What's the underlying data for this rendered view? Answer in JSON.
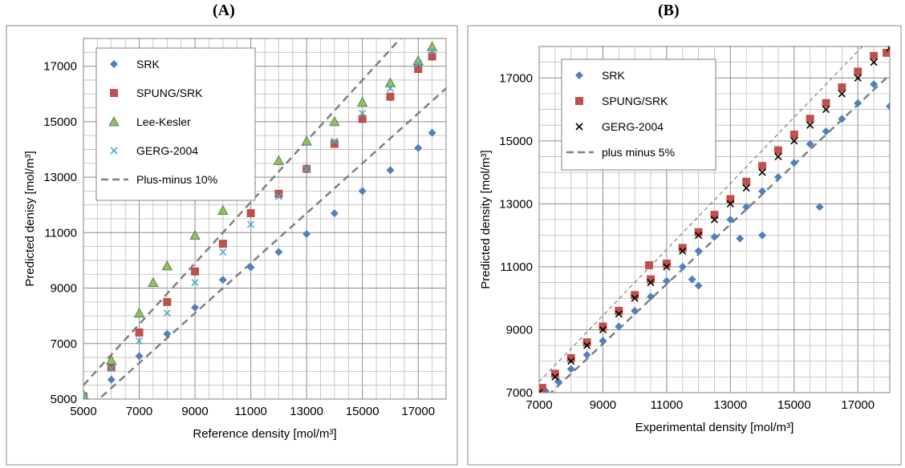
{
  "panels": {
    "a_label": "(A)",
    "b_label": "(B)"
  },
  "chart_data": [
    {
      "type": "scatter",
      "title": "(A)",
      "xlabel": "Reference density [mol/m³]",
      "ylabel": "Predicted denisy [mol/m³]",
      "xlim": [
        5000,
        18000
      ],
      "ylim": [
        5000,
        18000
      ],
      "xticks": [
        "5000",
        "7000",
        "9000",
        "11000",
        "13000",
        "15000",
        "17000"
      ],
      "yticks": [
        "5000",
        "7000",
        "9000",
        "11000",
        "13000",
        "15000",
        "17000"
      ],
      "grid": true,
      "legend_position": "top-left",
      "series": [
        {
          "name": "SRK",
          "marker": "diamond",
          "color": "#4F81BD",
          "x": [
            5000,
            6000,
            7000,
            8000,
            9000,
            10000,
            11000,
            12000,
            13000,
            14000,
            15000,
            16000,
            17000,
            17500
          ],
          "y": [
            5050,
            5700,
            6550,
            7350,
            8300,
            9300,
            9750,
            10300,
            10950,
            11700,
            12500,
            13250,
            14050,
            14600
          ]
        },
        {
          "name": "SPUNG/SRK",
          "marker": "square",
          "color": "#C0504D",
          "x": [
            5000,
            6000,
            7000,
            8000,
            9000,
            10000,
            11000,
            12000,
            13000,
            14000,
            15000,
            16000,
            17000,
            17500
          ],
          "y": [
            5100,
            6150,
            7400,
            8500,
            9600,
            10600,
            11700,
            12400,
            13300,
            14200,
            15100,
            15900,
            16900,
            17350
          ]
        },
        {
          "name": "Lee-Kesler",
          "marker": "triangle",
          "color": "#9BBB59",
          "x": [
            5000,
            6000,
            7000,
            7500,
            8000,
            9000,
            10000,
            11000,
            12000,
            13000,
            14000,
            15000,
            16000,
            17000,
            17500
          ],
          "y": [
            5150,
            6400,
            8100,
            9200,
            9800,
            10900,
            11800,
            12900,
            13600,
            14300,
            15000,
            15700,
            16400,
            17200,
            17700
          ]
        },
        {
          "name": "GERG-2004",
          "marker": "x",
          "color": "#4BACC6",
          "x": [
            5000,
            6000,
            7000,
            8000,
            9000,
            10000,
            11000,
            12000,
            13000,
            14000,
            15000,
            16000,
            17000,
            17500
          ],
          "y": [
            5080,
            6100,
            7100,
            8100,
            9200,
            10300,
            11300,
            12300,
            13300,
            14300,
            15300,
            16200,
            17100,
            17550
          ]
        },
        {
          "name": "Plus-minus 10%",
          "marker": "dash",
          "color": "#808080",
          "x": [
            5000,
            18000
          ],
          "y_upper": [
            5500,
            19800
          ],
          "y_lower": [
            4500,
            16200
          ]
        }
      ]
    },
    {
      "type": "scatter",
      "title": "(B)",
      "xlabel": "Experimental density [mol/m³]",
      "ylabel": "Predicted density [mol/m³]",
      "xlim": [
        7000,
        18000
      ],
      "ylim": [
        7000,
        18000
      ],
      "xticks": [
        "7000",
        "9000",
        "11000",
        "13000",
        "15000",
        "17000"
      ],
      "yticks": [
        "7000",
        "9000",
        "11000",
        "13000",
        "15000",
        "17000"
      ],
      "grid": true,
      "legend_position": "top-left",
      "series": [
        {
          "name": "SRK",
          "marker": "diamond",
          "color": "#4F81BD",
          "x": [
            7200,
            7600,
            8000,
            8500,
            9000,
            9500,
            10000,
            10500,
            11000,
            11500,
            12000,
            12500,
            13000,
            13500,
            14000,
            14500,
            15000,
            15500,
            16000,
            16500,
            17000,
            17500,
            18000,
            11800,
            12000,
            13300,
            14000,
            15800
          ],
          "y": [
            7050,
            7350,
            7750,
            8200,
            8650,
            9100,
            9600,
            10050,
            10550,
            11000,
            11500,
            11950,
            12500,
            12900,
            13400,
            13850,
            14300,
            14900,
            15300,
            15700,
            16200,
            16800,
            16100,
            10600,
            10400,
            11900,
            12000,
            12900
          ]
        },
        {
          "name": "SPUNG/SRK",
          "marker": "square",
          "color": "#C0504D",
          "x": [
            7100,
            7500,
            8000,
            8500,
            9000,
            9500,
            10000,
            10500,
            11000,
            11500,
            12000,
            12500,
            13000,
            13500,
            14000,
            14500,
            15000,
            15500,
            16000,
            16500,
            17000,
            17500,
            17900,
            10450
          ],
          "y": [
            7150,
            7600,
            8100,
            8600,
            9100,
            9600,
            10100,
            10600,
            11100,
            11600,
            12100,
            12650,
            13150,
            13700,
            14200,
            14700,
            15200,
            15700,
            16200,
            16700,
            17200,
            17700,
            17800,
            11050
          ]
        },
        {
          "name": "GERG-2004",
          "marker": "x",
          "color": "#000000",
          "x": [
            7000,
            7500,
            8000,
            8500,
            9000,
            9500,
            10000,
            10500,
            11000,
            11500,
            12000,
            12500,
            13000,
            13500,
            14000,
            14500,
            15000,
            15500,
            16000,
            16500,
            17000,
            17500,
            18000
          ],
          "y": [
            7000,
            7500,
            8000,
            8500,
            9000,
            9500,
            10000,
            10500,
            11000,
            11500,
            12000,
            12500,
            13000,
            13500,
            14000,
            14500,
            15000,
            15500,
            16000,
            16500,
            17000,
            17500,
            17950
          ]
        },
        {
          "name": "plus minus 5%",
          "marker": "dash",
          "color": "#808080",
          "x": [
            7000,
            18000
          ],
          "y_upper": [
            7350,
            18900
          ],
          "y_lower": [
            6650,
            17100
          ]
        }
      ]
    }
  ]
}
